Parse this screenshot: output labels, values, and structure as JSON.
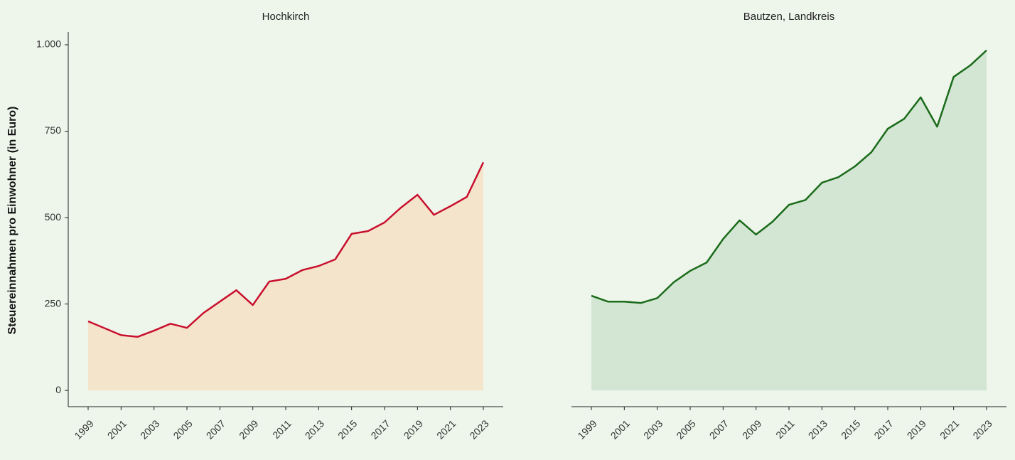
{
  "chart_data": [
    {
      "type": "area",
      "title": "Hochkirch",
      "ylabel": "Steuereinnahmen pro Einwohner (in Euro)",
      "x": [
        1999,
        2000,
        2001,
        2002,
        2003,
        2004,
        2005,
        2006,
        2007,
        2008,
        2009,
        2010,
        2011,
        2012,
        2013,
        2014,
        2015,
        2016,
        2017,
        2018,
        2019,
        2020,
        2021,
        2022,
        2023
      ],
      "values": [
        200,
        180,
        160,
        155,
        173,
        193,
        181,
        224,
        257,
        290,
        247,
        315,
        323,
        348,
        360,
        379,
        453,
        461,
        486,
        529,
        566,
        508,
        533,
        560,
        660
      ],
      "color": "#c8102e",
      "fill": "#f5e4cc",
      "ylim": [
        -47,
        1037
      ],
      "yticks": [
        0,
        250,
        500,
        750,
        {
          "value": 1000,
          "label": "1.000"
        }
      ],
      "xticks": [
        1999,
        2001,
        2003,
        2005,
        2007,
        2009,
        2011,
        2013,
        2015,
        2017,
        2019,
        2021,
        2023
      ]
    },
    {
      "type": "area",
      "title": "Bautzen, Landkreis",
      "x": [
        1999,
        2000,
        2001,
        2002,
        2003,
        2004,
        2005,
        2006,
        2007,
        2008,
        2009,
        2010,
        2011,
        2012,
        2013,
        2014,
        2015,
        2016,
        2017,
        2018,
        2019,
        2020,
        2021,
        2022,
        2023
      ],
      "values": [
        274,
        257,
        257,
        253,
        267,
        313,
        346,
        370,
        438,
        492,
        451,
        488,
        537,
        551,
        601,
        617,
        648,
        689,
        757,
        786,
        848,
        763,
        907,
        940,
        984
      ],
      "color": "#1a6b1a",
      "fill": "#d3e6d3",
      "ylim": [
        -47,
        1037
      ],
      "xticks": [
        1999,
        2001,
        2003,
        2005,
        2007,
        2009,
        2011,
        2013,
        2015,
        2017,
        2019,
        2021,
        2023
      ]
    }
  ]
}
